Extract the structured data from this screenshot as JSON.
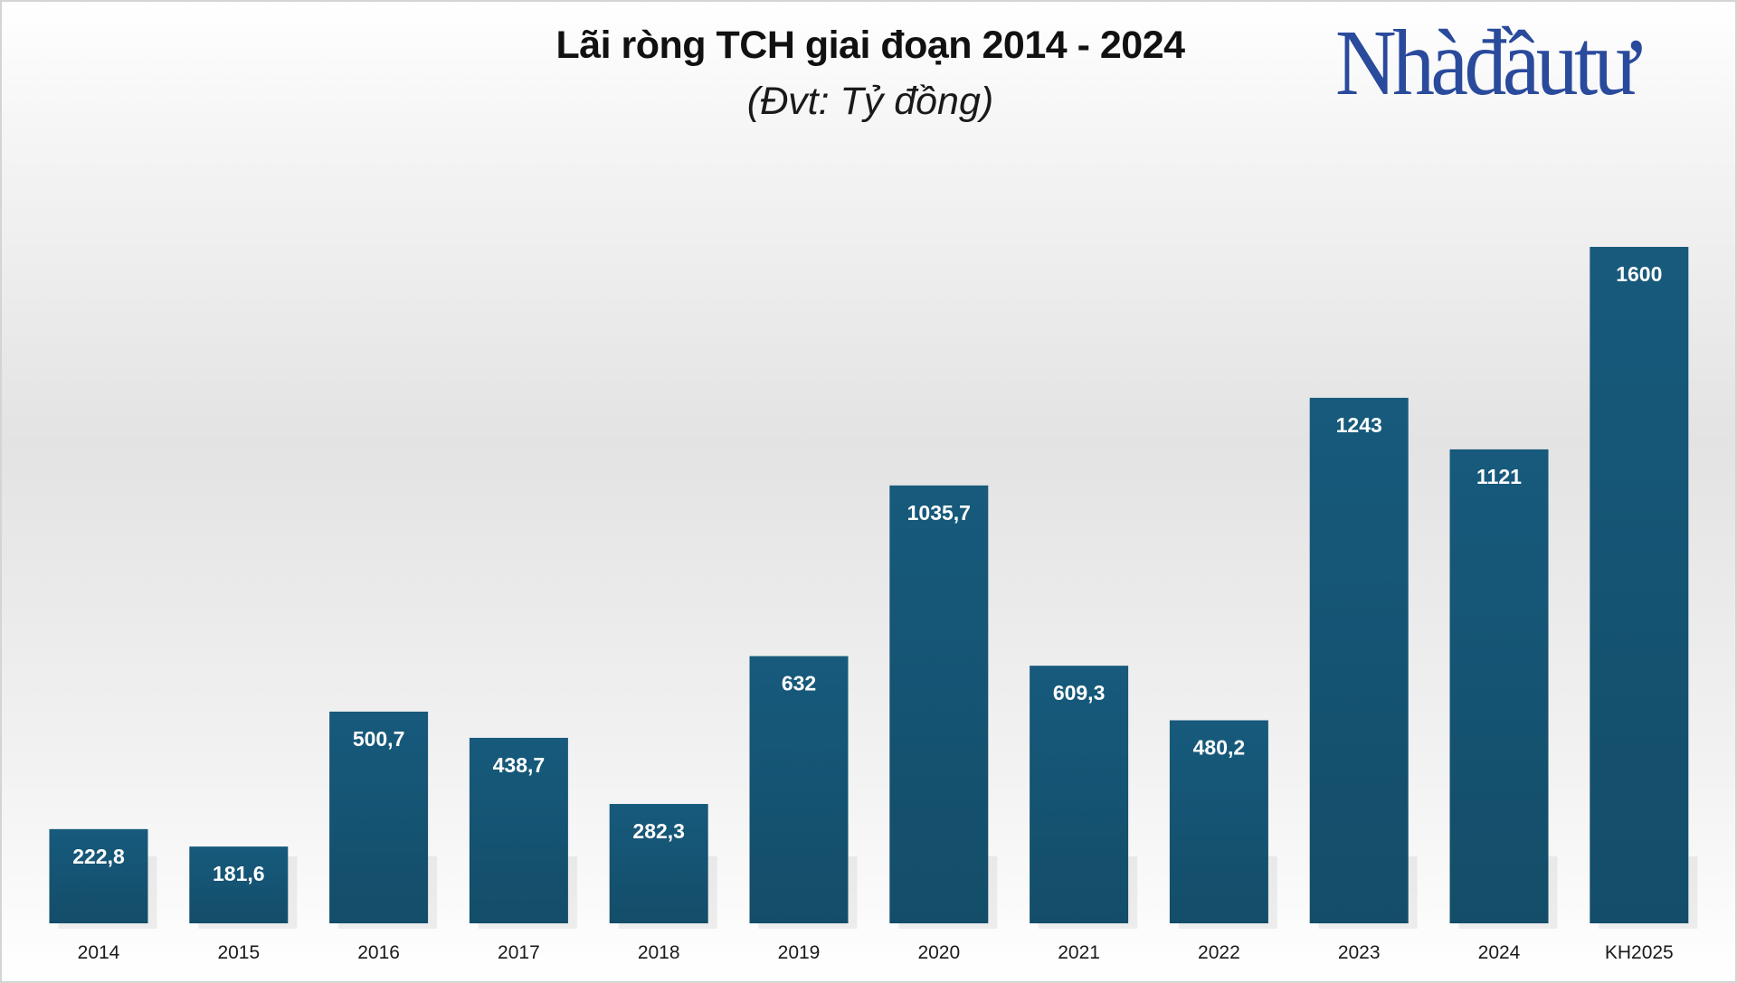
{
  "chart_data": {
    "type": "bar",
    "title": "Lãi ròng TCH giai đoạn 2014 - 2024",
    "subtitle": "(Đvt: Tỷ đồng)",
    "categories": [
      "2014",
      "2015",
      "2016",
      "2017",
      "2018",
      "2019",
      "2020",
      "2021",
      "2022",
      "2023",
      "2024",
      "KH2025"
    ],
    "values": [
      222.8,
      181.6,
      500.7,
      438.7,
      282.3,
      632,
      1035.7,
      609.3,
      480.2,
      1243,
      1121,
      1600
    ],
    "data_labels": [
      "222,8",
      "181,6",
      "500,7",
      "438,7",
      "282,3",
      "632",
      "1035,7",
      "609,3",
      "480,2",
      "1243",
      "1121",
      "1600"
    ],
    "bar_color": "#175a7c",
    "ylim": [
      0,
      1600
    ],
    "grid": false,
    "legend": "none"
  },
  "logo": {
    "text": "Nhàđầutư",
    "color": "#2a4a9c"
  }
}
